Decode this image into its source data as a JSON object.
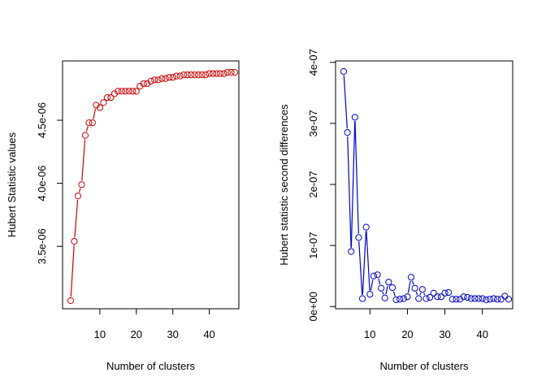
{
  "chart_data": [
    {
      "type": "scatter",
      "title": "",
      "xlabel": "Number of clusters",
      "ylabel": "Hubert Statistic values",
      "xlim": [
        1,
        48
      ],
      "ylim": [
        3e-06,
        5e-06
      ],
      "x_ticks": [
        10,
        20,
        30,
        40
      ],
      "x_tick_labels": [
        "10",
        "20",
        "30",
        "40"
      ],
      "y_ticks": [
        3.5e-06,
        4e-06,
        4.5e-06
      ],
      "y_tick_labels": [
        "3.5e-06",
        "4.0e-06",
        "4.5e-06"
      ],
      "color": "#cc0000",
      "grid": false,
      "series": [
        {
          "x": [
            2,
            3,
            4,
            5,
            6,
            7,
            8,
            9,
            10,
            11,
            12,
            13,
            14,
            15,
            16,
            17,
            18,
            19,
            20,
            21,
            22,
            23,
            24,
            25,
            26,
            27,
            28,
            29,
            30,
            31,
            32,
            33,
            34,
            35,
            36,
            37,
            38,
            39,
            40,
            41,
            42,
            43,
            44,
            45,
            46,
            47
          ],
          "y": [
            3.07e-06,
            3.54e-06,
            3.9e-06,
            3.99e-06,
            4.38e-06,
            4.48e-06,
            4.48e-06,
            4.62e-06,
            4.6e-06,
            4.64e-06,
            4.68e-06,
            4.68e-06,
            4.71e-06,
            4.73e-06,
            4.73e-06,
            4.73e-06,
            4.73e-06,
            4.73e-06,
            4.73e-06,
            4.77e-06,
            4.79e-06,
            4.79e-06,
            4.81e-06,
            4.82e-06,
            4.82e-06,
            4.83e-06,
            4.83e-06,
            4.84e-06,
            4.84e-06,
            4.85e-06,
            4.85e-06,
            4.86e-06,
            4.86e-06,
            4.86e-06,
            4.86e-06,
            4.86e-06,
            4.86e-06,
            4.86e-06,
            4.87e-06,
            4.87e-06,
            4.87e-06,
            4.87e-06,
            4.87e-06,
            4.88e-06,
            4.88e-06,
            4.88e-06
          ]
        }
      ]
    },
    {
      "type": "scatter",
      "title": "",
      "xlabel": "Number of clusters",
      "ylabel": "Hubert statistic second differences",
      "xlim": [
        1,
        48
      ],
      "ylim": [
        -1.5e-08,
        4e-07
      ],
      "x_ticks": [
        10,
        20,
        30,
        40
      ],
      "x_tick_labels": [
        "10",
        "20",
        "30",
        "40"
      ],
      "y_ticks": [
        0,
        1e-07,
        2e-07,
        3e-07,
        4e-07
      ],
      "y_tick_labels": [
        "0e+00",
        "1e-07",
        "2e-07",
        "3e-07",
        "4e-07"
      ],
      "color": "#0000cc",
      "grid": false,
      "series": [
        {
          "x": [
            3,
            4,
            5,
            6,
            7,
            8,
            9,
            10,
            11,
            12,
            13,
            14,
            15,
            16,
            17,
            18,
            19,
            20,
            21,
            22,
            23,
            24,
            25,
            26,
            27,
            28,
            29,
            30,
            31,
            32,
            33,
            34,
            35,
            36,
            37,
            38,
            39,
            40,
            41,
            42,
            43,
            44,
            45,
            46,
            47
          ],
          "y": [
            3.85e-07,
            2.85e-07,
            9e-08,
            3.1e-07,
            1.13e-07,
            1.3e-08,
            1.3e-07,
            2e-08,
            5e-08,
            5.2e-08,
            3e-08,
            1.4e-08,
            4e-08,
            3.1e-08,
            1.1e-08,
            1.2e-08,
            1.3e-08,
            1.6e-08,
            4.8e-08,
            3e-08,
            1.3e-08,
            2.8e-08,
            1.3e-08,
            1.5e-08,
            2.2e-08,
            1.6e-08,
            1.6e-08,
            2.2e-08,
            2.3e-08,
            1.2e-08,
            1.2e-08,
            1.2e-08,
            1.6e-08,
            1.5e-08,
            1.3e-08,
            1.3e-08,
            1.3e-08,
            1.3e-08,
            1.1e-08,
            1.2e-08,
            1.3e-08,
            1.2e-08,
            1.2e-08,
            1.7e-08,
            1.2e-08
          ]
        }
      ]
    }
  ]
}
